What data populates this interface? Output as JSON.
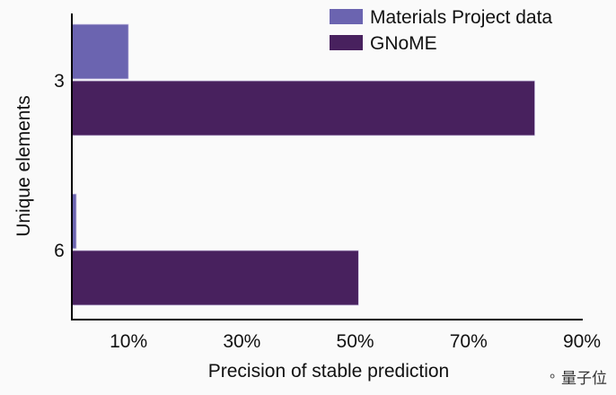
{
  "chart_data": {
    "type": "bar",
    "orientation": "horizontal",
    "categories": [
      "3",
      "6"
    ],
    "series": [
      {
        "name": "Materials Project data",
        "color": "#6b64b0",
        "values": [
          10,
          0.8
        ]
      },
      {
        "name": "GNoME",
        "color": "#48215e",
        "values": [
          81.7,
          50.6
        ]
      }
    ],
    "xlabel": "Precision of stable prediction",
    "ylabel": "Unique elements",
    "xlim": [
      0,
      90
    ],
    "xticks": [
      "10%",
      "30%",
      "50%",
      "70%",
      "90%"
    ],
    "xtick_values": [
      10,
      30,
      50,
      70,
      90
    ],
    "grid": false,
    "legend_placement": "top-right"
  },
  "watermark": "量子位"
}
